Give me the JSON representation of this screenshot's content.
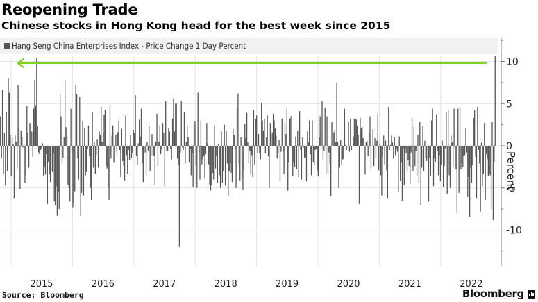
{
  "header": {
    "title": "Reopening Trade",
    "subtitle": "Chinese stocks in Hong Kong head for the best week since 2015"
  },
  "footer": {
    "source": "Source: Bloomberg",
    "brand": "Bloomberg"
  },
  "colors": {
    "bar": "#555555",
    "annotation_arrow": "#7dd321",
    "grid": "#e3e3e3",
    "legend_bg": "#f2f2f2"
  },
  "chart_data": {
    "type": "bar",
    "title": "Reopening Trade",
    "subtitle": "Chinese stocks in Hong Kong head for the best week since 2015",
    "legend": [
      "Hang Seng China Enterprises Index - Price Change 1 Day Percent"
    ],
    "legend_position": "top-left",
    "xlabel": "",
    "ylabel": "Percent",
    "y_axis_side": "right",
    "ylim": [
      -14,
      12.5
    ],
    "yticks": [
      10,
      5,
      0,
      -5,
      -10
    ],
    "ytick_labels": [
      "10",
      "5",
      "0",
      "-5",
      "-10"
    ],
    "xlim": [
      2014.82,
      2022.9
    ],
    "xticks": [
      2015,
      2016,
      2017,
      2018,
      2019,
      2020,
      2021,
      2022
    ],
    "xtick_labels": [
      "2015",
      "2016",
      "2017",
      "2018",
      "2019",
      "2020",
      "2021",
      "2022"
    ],
    "grid": true,
    "annotation": {
      "type": "arrow",
      "description": "Horizontal arrow from latest bar level back to the 2015 peak",
      "y": 9.8,
      "x_from": 2022.75,
      "x_to": 2015.1
    },
    "series": [
      {
        "name": "Hang Seng China Enterprises Index - Price Change 1 Day Percent",
        "x_start": 2014.82,
        "x_end": 2022.88,
        "values": [
          3.5,
          -1.5,
          6.6,
          -3.3,
          1.5,
          -4.7,
          4.0,
          -3.0,
          8.0,
          6.3,
          1.3,
          -3.6,
          1.0,
          0.2,
          -6.2,
          1.2,
          0.5,
          -2.7,
          7.2,
          2.1,
          -5.1,
          1.8,
          1.0,
          -0.2,
          0.3,
          -4.4,
          -3.5,
          4.7,
          1.5,
          -2.6,
          2.7,
          2.3,
          1.7,
          -1.3,
          4.4,
          7.8,
          4.8,
          10.4,
          2.3,
          -0.8,
          -1.0,
          -0.5,
          -0.3,
          0.3,
          -3.6,
          -2.5,
          -3.4,
          -1.0,
          -6.9,
          -1.9,
          -3.4,
          -4.3,
          0.0,
          -3.1,
          -0.9,
          -6.6,
          -7.1,
          -4.8,
          -8.3,
          -5.4,
          -7.5,
          6.2,
          3.5,
          -2.1,
          -1.4,
          1.0,
          7.8,
          2.2,
          1.1,
          -4.6,
          -5.0,
          -6.6,
          4.4,
          -0.7,
          -7.3,
          -6.8,
          -5.4,
          7.2,
          6.1,
          -1.5,
          -4.0,
          5.8,
          -8.3,
          -5.6,
          2.9,
          -5.9,
          2.1,
          -3.5,
          -3.1,
          -0.4,
          2.4,
          -1.2,
          -5.0,
          -6.4,
          4.0,
          -2.6,
          0.4,
          -3.3,
          -1.1,
          0.8,
          -2.6,
          1.8,
          1.3,
          4.6,
          0.5,
          1.6,
          3.7,
          4.2,
          -2.4,
          -2.7,
          -5.0,
          -6.4,
          4.8,
          -1.5,
          1.2,
          2.4,
          -2.0,
          -0.4,
          1.3,
          -0.8,
          1.6,
          2.9,
          -0.5,
          -3.7,
          2.0,
          -1.8,
          -2.4,
          -4.1,
          3.6,
          -1.1,
          -3.3,
          -0.5,
          -1.7,
          1.3,
          -1.4,
          -0.9,
          1.9,
          1.5,
          6.0,
          -1.2,
          -2.3,
          0.3,
          3.1,
          1.1,
          4.4,
          -2.1,
          -4.3,
          0.0,
          -0.8,
          -3.5,
          0.5,
          -0.6,
          2.3,
          -3.0,
          -1.2,
          1.4,
          -1.1,
          -1.2,
          -4.7,
          0.5,
          3.8,
          -2.4,
          0.5,
          2.4,
          -1.0,
          -0.4,
          2.7,
          1.5,
          -4.8,
          5.3,
          -0.6,
          -0.6,
          2.1,
          1.7,
          -0.4,
          -1.6,
          3.2,
          5.6,
          1.7,
          5.0,
          5.0,
          -1.5,
          -2.3,
          -12.0,
          -0.8,
          5.3,
          -0.2,
          -0.5,
          4.0,
          -2.1,
          0.5,
          2.4,
          1.0,
          -2.0,
          -0.4,
          -3.5,
          -0.9,
          -4.9,
          2.5,
          2.9,
          -2.2,
          -5.0,
          6.3,
          -0.8,
          -4.0,
          3.0,
          -2.2,
          -1.6,
          -1.2,
          -3.9,
          -1.0,
          2.7,
          0.3,
          -2.2,
          -4.6,
          -5.3,
          -4.7,
          -3.2,
          -4.0,
          2.4,
          -2.7,
          -1.2,
          -4.4,
          0.2,
          -3.5,
          -5.0,
          1.7,
          -4.4,
          -3.0,
          2.5,
          -4.7,
          1.8,
          -2.1,
          -6.0,
          -3.0,
          -1.9,
          -3.2,
          -4.3,
          2.0,
          1.3,
          -0.4,
          -5.0,
          4.5,
          6.2,
          -2.1,
          -4.1,
          1.0,
          -3.9,
          -5.2,
          -3.0,
          2.6,
          0.9,
          3.9,
          0.4,
          -2.1,
          -0.6,
          -3.4,
          -1.1,
          -3.7,
          4.2,
          -2.2,
          3.2,
          3.6,
          -0.9,
          1.4,
          -0.9,
          -1.6,
          5.1,
          3.0,
          1.8,
          3.2,
          -0.9,
          1.0,
          3.6,
          -1.2,
          -5.0,
          2.7,
          0.0,
          1.6,
          3.8,
          3.0,
          2.1,
          1.2,
          -1.5,
          -0.9,
          0.7,
          -4.2,
          -0.7,
          3.2,
          -0.7,
          -3.3,
          2.7,
          1.4,
          4.4,
          -5.3,
          -2.0,
          3.2,
          3.5,
          -0.2,
          -3.6,
          -2.0,
          -2.5,
          1.1,
          -2.8,
          1.8,
          -3.7,
          4.1,
          -0.5,
          -4.0,
          1.0,
          -0.2,
          -1.4,
          -1.4,
          -4.2,
          1.7,
          0.4,
          3.0,
          -1.0,
          -3.5,
          3.0,
          -2.0,
          -2.3,
          -0.5,
          -0.4,
          -2.9,
          -3.6,
          1.0,
          3.5,
          0.0,
          5.3,
          -1.6,
          -0.6,
          4.5,
          -3.4,
          3.5,
          -3.2,
          -0.8,
          -2.1,
          -6.0,
          2.8,
          -0.1,
          1.6,
          1.9,
          0.4,
          7.5,
          0.5,
          -5.0,
          -2.6,
          0.7,
          -2.2,
          -1.6,
          -1.6,
          4.4,
          0.1,
          -0.5,
          0.0,
          2.8,
          -0.7,
          3.2,
          -0.5,
          0.0,
          1.1,
          3.2,
          3.2,
          3.1,
          2.4,
          1.3,
          -6.9,
          3.3,
          2.1,
          2.2,
          0.9,
          -0.1,
          -3.4,
          0.4,
          0.6,
          -1.2,
          1.6,
          3.5,
          -2.8,
          0.0,
          1.9,
          -2.4,
          0.9,
          -1.5,
          0.6,
          3.8,
          -2.9,
          0.3,
          -3.5,
          -5.9,
          -1.3,
          1.2,
          -2.2,
          0.6,
          -2.9,
          -6.2,
          4.6,
          -0.5,
          0.1,
          1.2,
          0.4,
          -1.5,
          1.0,
          -1.1,
          -0.3,
          -0.7,
          -5.5,
          1.1,
          -4.2,
          -2.0,
          -6.5,
          -0.3,
          -4.7,
          -0.3,
          -0.9,
          -3.1,
          -1.7,
          -2.4,
          -4.5,
          -0.8,
          3.3,
          -3.0,
          2.2,
          -2.4,
          -0.6,
          -3.6,
          1.3,
          -4.4,
          2.8,
          -7.0,
          -2.6,
          2.3,
          -3.0,
          0.6,
          -1.4,
          -1.8,
          0.0,
          -6.6,
          -1.4,
          -3.6,
          3.0,
          4.4,
          -4.8,
          -1.4,
          -1.9,
          3.7,
          -0.6,
          -3.5,
          -1.1,
          -4.2,
          -2.3,
          0.6,
          -4.9,
          -2.4,
          -0.3,
          4.0,
          -5.7,
          4.3,
          -3.5,
          -5.0,
          1.2,
          0.4,
          -2.5,
          4.4,
          -0.4,
          -2.8,
          -8.0,
          4.4,
          -5.6,
          4.6,
          -2.8,
          -2.1,
          -2.5,
          -1.2,
          -1.1,
          2.1,
          -0.8,
          -6.1,
          -3.7,
          -8.4,
          -2.6,
          -4.4,
          -2.3,
          3.3,
          4.2,
          -1.3,
          -6.2,
          4.6,
          -0.5,
          -2.1,
          -7.8,
          0.4,
          -4.8,
          -3.3,
          2.7,
          -6.4,
          -1.0,
          -1.6,
          -3.6,
          -3.3,
          -3.5,
          -7.5,
          2.8,
          -8.8,
          -1.9,
          10.7
        ]
      }
    ]
  }
}
